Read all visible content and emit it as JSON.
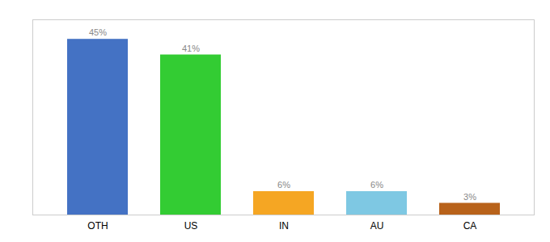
{
  "chart_data": {
    "type": "bar",
    "categories": [
      "OTH",
      "US",
      "IN",
      "AU",
      "CA"
    ],
    "values": [
      45,
      41,
      6,
      6,
      3
    ],
    "value_labels": [
      "45%",
      "41%",
      "6%",
      "6%",
      "3%"
    ],
    "colors": [
      "#4472c4",
      "#33cc33",
      "#f5a623",
      "#7ec8e3",
      "#b8621a"
    ],
    "ylim": [
      0,
      50
    ],
    "data_labels": true,
    "tick_labels": "x",
    "grid": false
  }
}
